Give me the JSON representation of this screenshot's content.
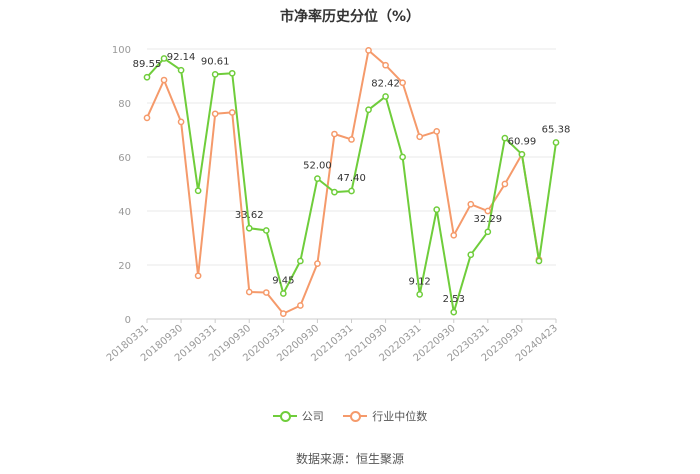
{
  "title": "市净率历史分位（%）",
  "source_text": "数据来源：恒生聚源",
  "colors": {
    "company": "#6fcd3b",
    "industry": "#f59a6b",
    "grid": "#e8e8e8",
    "axis": "#cccccc"
  },
  "chart_data": {
    "type": "line",
    "title": "市净率历史分位（%）",
    "xlabel": "",
    "ylabel": "",
    "ylim": [
      0,
      100
    ],
    "yticks": [
      0,
      20,
      40,
      60,
      80,
      100
    ],
    "grid": true,
    "legend_position": "bottom",
    "x_tick_labels": [
      "20180331",
      "20180930",
      "20190331",
      "20190930",
      "20200331",
      "20200930",
      "20210331",
      "20210930",
      "20220331",
      "20220930",
      "20230331",
      "20230930",
      "20240423"
    ],
    "x": [
      "20180331",
      "20180630",
      "20180930",
      "20181231",
      "20190331",
      "20190630",
      "20190930",
      "20191231",
      "20200331",
      "20200630",
      "20200930",
      "20201231",
      "20210331",
      "20210630",
      "20210930",
      "20211231",
      "20220331",
      "20220630",
      "20220930",
      "20221231",
      "20230331",
      "20230630",
      "20230930",
      "20231231",
      "20240423"
    ],
    "series": [
      {
        "name": "公司",
        "color": "#6fcd3b",
        "values": [
          89.55,
          96.5,
          92.14,
          47.5,
          90.61,
          91.0,
          33.62,
          32.8,
          9.45,
          21.5,
          52.0,
          47.0,
          47.4,
          77.5,
          82.42,
          60.0,
          9.12,
          40.5,
          2.53,
          23.8,
          32.29,
          67.0,
          60.99,
          21.5,
          65.38
        ]
      },
      {
        "name": "行业中位数",
        "color": "#f59a6b",
        "values": [
          74.5,
          88.5,
          73.0,
          16.0,
          76.0,
          76.5,
          10.0,
          9.8,
          2.0,
          5.0,
          20.5,
          68.5,
          66.5,
          99.5,
          94.0,
          87.5,
          67.5,
          69.5,
          31.0,
          42.5,
          40.0,
          50.0,
          61.0,
          22.0,
          null
        ]
      }
    ],
    "data_labels": [
      {
        "index": 0,
        "text": "89.55"
      },
      {
        "index": 2,
        "text": "92.14"
      },
      {
        "index": 4,
        "text": "90.61"
      },
      {
        "index": 6,
        "text": "33.62"
      },
      {
        "index": 8,
        "text": "9.45"
      },
      {
        "index": 10,
        "text": "52.00"
      },
      {
        "index": 12,
        "text": "47.40"
      },
      {
        "index": 14,
        "text": "82.42"
      },
      {
        "index": 16,
        "text": "9.12"
      },
      {
        "index": 18,
        "text": "2.53"
      },
      {
        "index": 20,
        "text": "32.29"
      },
      {
        "index": 22,
        "text": "60.99"
      },
      {
        "index": 24,
        "text": "65.38"
      }
    ]
  }
}
